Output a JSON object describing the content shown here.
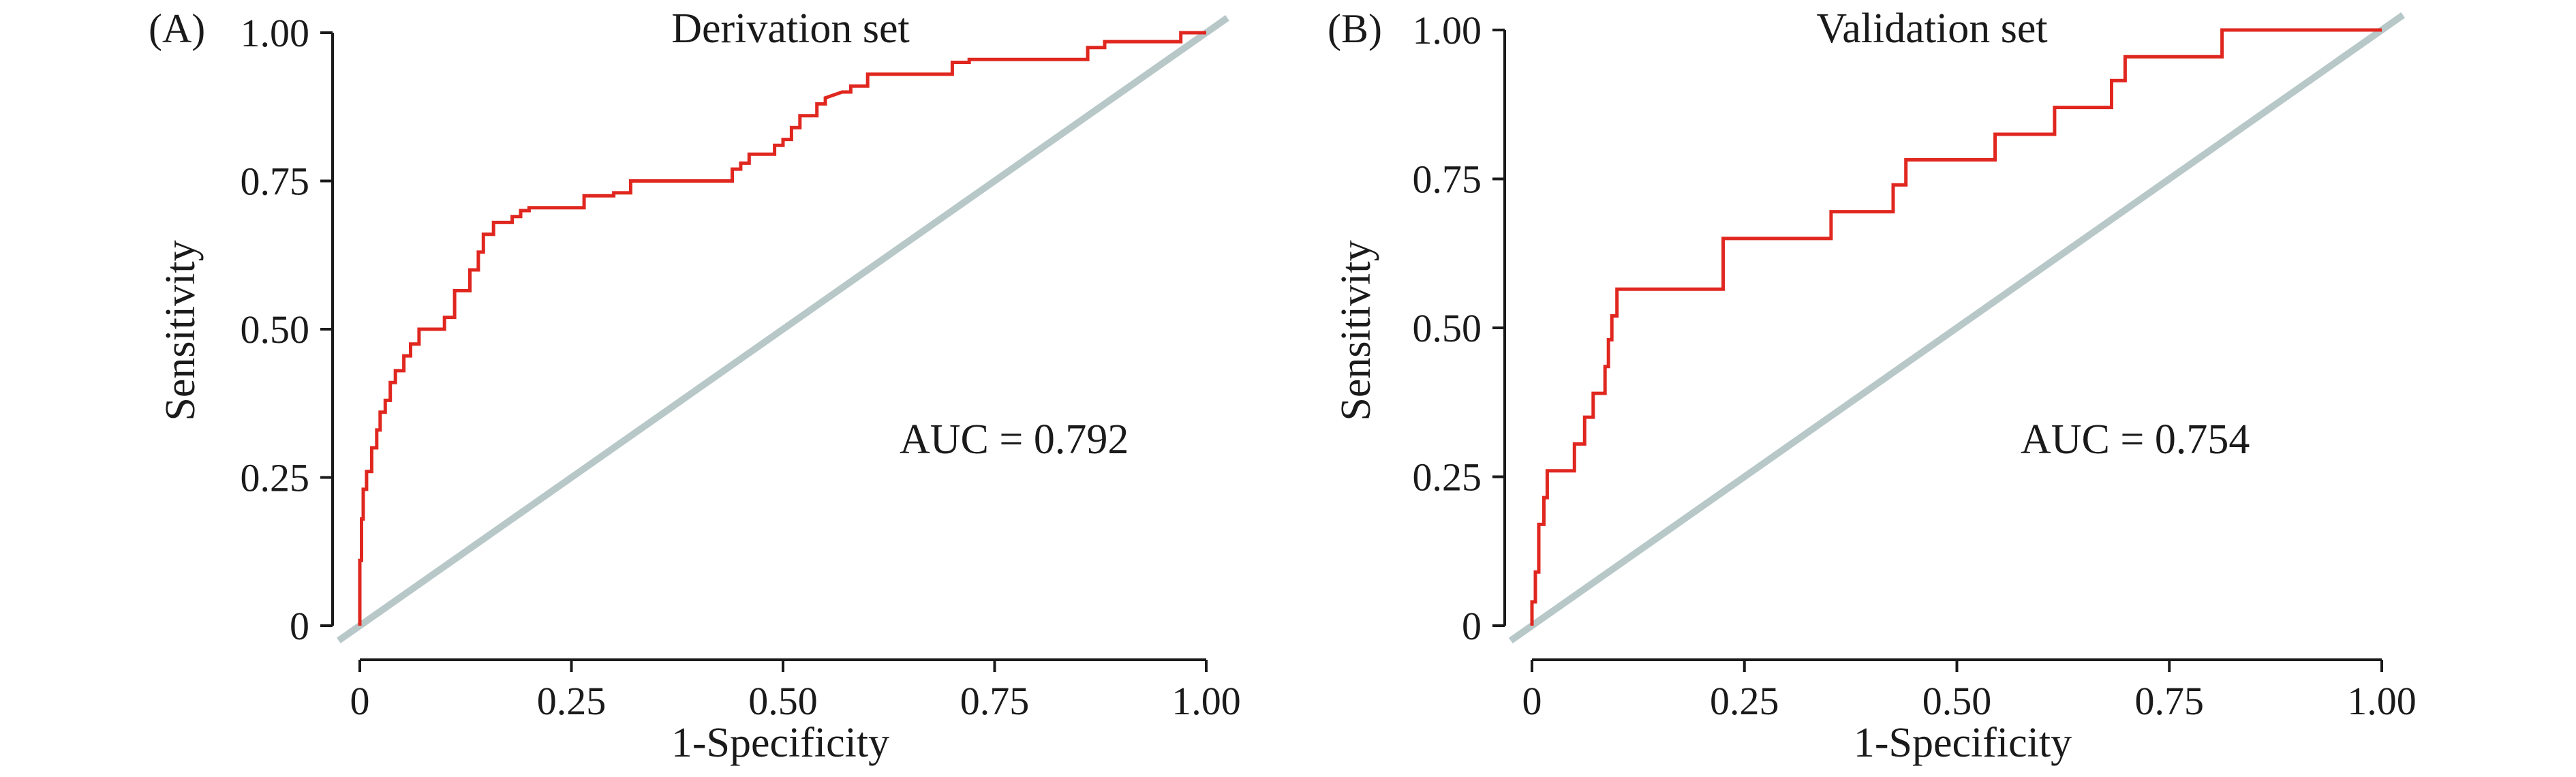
{
  "colors": {
    "roc_curve": "#e0271f",
    "reference_line": "#b8c8c8",
    "axis": "#1a1a1a",
    "background": "#ffffff"
  },
  "chart_data": [
    {
      "type": "line",
      "panel_label": "(A)",
      "title": "Derivation set",
      "xlabel": "1-Specificity",
      "ylabel": "Sensitivity",
      "xlim": [
        0,
        1
      ],
      "ylim": [
        0,
        1
      ],
      "x_ticks": [
        "0",
        "0.25",
        "0.50",
        "0.75",
        "1.00"
      ],
      "y_ticks": [
        "0",
        "0.25",
        "0.50",
        "0.75",
        "1.00"
      ],
      "grid": false,
      "annotation": "AUC = 0.792",
      "series": [
        {
          "role": "roc",
          "x": [
            0.0,
            0.0,
            0.002,
            0.002,
            0.004,
            0.004,
            0.008,
            0.008,
            0.014,
            0.014,
            0.02,
            0.02,
            0.024,
            0.024,
            0.03,
            0.03,
            0.036,
            0.036,
            0.042,
            0.042,
            0.052,
            0.052,
            0.06,
            0.06,
            0.07,
            0.07,
            0.08,
            0.08,
            0.1,
            0.1,
            0.112,
            0.112,
            0.13,
            0.13,
            0.14,
            0.14,
            0.146,
            0.146,
            0.152,
            0.152,
            0.158,
            0.158,
            0.18,
            0.18,
            0.19,
            0.19,
            0.2,
            0.2,
            0.2,
            0.265,
            0.265,
            0.3,
            0.3,
            0.32,
            0.32,
            0.44,
            0.44,
            0.45,
            0.45,
            0.46,
            0.46,
            0.49,
            0.49,
            0.5,
            0.5,
            0.51,
            0.51,
            0.52,
            0.52,
            0.54,
            0.54,
            0.55,
            0.55,
            0.57,
            0.58,
            0.58,
            0.6,
            0.6,
            0.7,
            0.7,
            0.72,
            0.72,
            0.86,
            0.86,
            0.88,
            0.88,
            0.97,
            0.97,
            0.98,
            0.98,
            1.0
          ],
          "y": [
            0.0,
            0.11,
            0.11,
            0.18,
            0.18,
            0.23,
            0.23,
            0.26,
            0.26,
            0.3,
            0.3,
            0.33,
            0.33,
            0.36,
            0.36,
            0.38,
            0.38,
            0.41,
            0.41,
            0.43,
            0.43,
            0.455,
            0.455,
            0.475,
            0.475,
            0.5,
            0.5,
            0.5,
            0.5,
            0.52,
            0.52,
            0.565,
            0.565,
            0.6,
            0.6,
            0.63,
            0.63,
            0.66,
            0.66,
            0.66,
            0.66,
            0.68,
            0.68,
            0.69,
            0.69,
            0.7,
            0.7,
            0.705,
            0.705,
            0.705,
            0.725,
            0.725,
            0.73,
            0.73,
            0.75,
            0.75,
            0.77,
            0.77,
            0.78,
            0.78,
            0.795,
            0.795,
            0.81,
            0.81,
            0.82,
            0.82,
            0.84,
            0.84,
            0.86,
            0.86,
            0.88,
            0.88,
            0.89,
            0.9,
            0.9,
            0.91,
            0.91,
            0.93,
            0.93,
            0.95,
            0.95,
            0.955,
            0.955,
            0.975,
            0.975,
            0.985,
            0.985,
            1.0,
            1.0,
            1.0,
            1.0
          ]
        },
        {
          "role": "reference",
          "x": [
            0,
            1
          ],
          "y": [
            0,
            1
          ]
        }
      ]
    },
    {
      "type": "line",
      "panel_label": "(B)",
      "title": "Validation set",
      "xlabel": "1-Specificity",
      "ylabel": "Sensitivity",
      "xlim": [
        0,
        1
      ],
      "ylim": [
        0,
        1
      ],
      "x_ticks": [
        "0",
        "0.25",
        "0.50",
        "0.75",
        "1.00"
      ],
      "y_ticks": [
        "0",
        "0.25",
        "0.50",
        "0.75",
        "1.00"
      ],
      "grid": false,
      "annotation": "AUC = 0.754",
      "series": [
        {
          "role": "roc",
          "x": [
            0.0,
            0.0,
            0.004,
            0.004,
            0.008,
            0.008,
            0.014,
            0.014,
            0.018,
            0.018,
            0.05,
            0.05,
            0.062,
            0.062,
            0.072,
            0.072,
            0.086,
            0.086,
            0.09,
            0.09,
            0.094,
            0.094,
            0.1,
            0.1,
            0.225,
            0.225,
            0.352,
            0.352,
            0.425,
            0.425,
            0.44,
            0.44,
            0.545,
            0.545,
            0.615,
            0.615,
            0.682,
            0.682,
            0.698,
            0.698,
            0.812,
            0.812,
            1.0
          ],
          "y": [
            0.0,
            0.04,
            0.04,
            0.09,
            0.09,
            0.17,
            0.17,
            0.215,
            0.215,
            0.26,
            0.26,
            0.305,
            0.305,
            0.35,
            0.35,
            0.39,
            0.39,
            0.435,
            0.435,
            0.48,
            0.48,
            0.52,
            0.52,
            0.565,
            0.565,
            0.65,
            0.65,
            0.695,
            0.695,
            0.74,
            0.74,
            0.782,
            0.782,
            0.825,
            0.825,
            0.87,
            0.87,
            0.915,
            0.915,
            0.955,
            0.955,
            1.0,
            1.0
          ]
        },
        {
          "role": "reference",
          "x": [
            0,
            1
          ],
          "y": [
            0,
            1
          ]
        }
      ]
    }
  ]
}
